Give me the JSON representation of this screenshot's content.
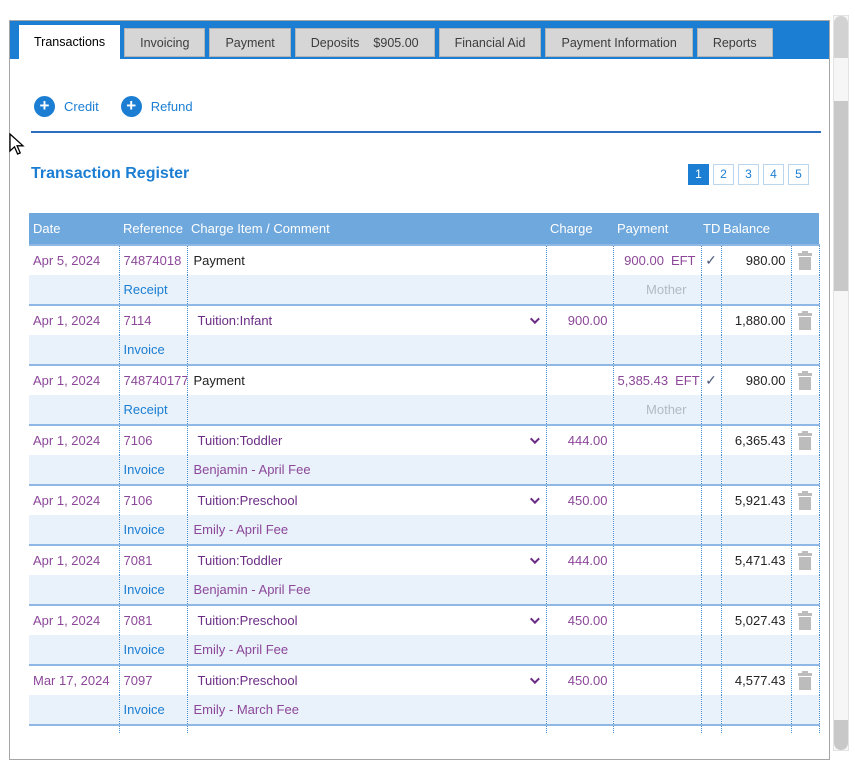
{
  "tabs": [
    {
      "label": "Transactions",
      "active": true
    },
    {
      "label": "Invoicing"
    },
    {
      "label": "Payment"
    },
    {
      "label": "Deposits",
      "amount": "$905.00"
    },
    {
      "label": "Financial Aid"
    },
    {
      "label": "Payment Information"
    },
    {
      "label": "Reports"
    }
  ],
  "actions": {
    "credit_label": "Credit",
    "refund_label": "Refund"
  },
  "register": {
    "title": "Transaction Register",
    "pagination": {
      "pages": [
        "1",
        "2",
        "3",
        "4",
        "5"
      ],
      "current": "1"
    },
    "table": {
      "headers": {
        "date": "Date",
        "reference": "Reference",
        "charge_item": "Charge Item / Comment",
        "charge": "Charge",
        "payment": "Payment",
        "td": "TD",
        "balance": "Balance"
      },
      "check_glyph": "✓",
      "rows": [
        {
          "date": "Apr 5, 2024",
          "reference": "74874018",
          "item": "Payment",
          "item_type": "text",
          "charge": "",
          "payment": {
            "amount": "900.00",
            "method": "EFT"
          },
          "td_check": true,
          "balance": "980.00",
          "link": "Receipt",
          "comment": "",
          "payer": "Mother"
        },
        {
          "date": "Apr 1, 2024",
          "reference": "7114",
          "item": "Tuition:Infant",
          "item_type": "select",
          "charge": "900.00",
          "payment": {
            "amount": "",
            "method": ""
          },
          "td_check": false,
          "balance": "1,880.00",
          "link": "Invoice",
          "comment": "",
          "payer": ""
        },
        {
          "date": "Apr 1, 2024",
          "reference": "748740177",
          "item": "Payment",
          "item_type": "text",
          "charge": "",
          "payment": {
            "amount": "5,385.43",
            "method": "EFT"
          },
          "td_check": true,
          "balance": "980.00",
          "link": "Receipt",
          "comment": "",
          "payer": "Mother"
        },
        {
          "date": "Apr 1, 2024",
          "reference": "7106",
          "item": "Tuition:Toddler",
          "item_type": "select",
          "charge": "444.00",
          "payment": {
            "amount": "",
            "method": ""
          },
          "td_check": false,
          "balance": "6,365.43",
          "link": "Invoice",
          "comment": "Benjamin - April Fee",
          "payer": ""
        },
        {
          "date": "Apr 1, 2024",
          "reference": "7106",
          "item": "Tuition:Preschool",
          "item_type": "select",
          "charge": "450.00",
          "payment": {
            "amount": "",
            "method": ""
          },
          "td_check": false,
          "balance": "5,921.43",
          "link": "Invoice",
          "comment": "Emily - April Fee",
          "payer": ""
        },
        {
          "date": "Apr 1, 2024",
          "reference": "7081",
          "item": "Tuition:Toddler",
          "item_type": "select",
          "charge": "444.00",
          "payment": {
            "amount": "",
            "method": ""
          },
          "td_check": false,
          "balance": "5,471.43",
          "link": "Invoice",
          "comment": "Benjamin - April Fee",
          "payer": ""
        },
        {
          "date": "Apr 1, 2024",
          "reference": "7081",
          "item": "Tuition:Preschool",
          "item_type": "select",
          "charge": "450.00",
          "payment": {
            "amount": "",
            "method": ""
          },
          "td_check": false,
          "balance": "5,027.43",
          "link": "Invoice",
          "comment": "Emily - April Fee",
          "payer": ""
        },
        {
          "date": "Mar 17, 2024",
          "reference": "7097",
          "item": "Tuition:Preschool",
          "item_type": "select",
          "charge": "450.00",
          "payment": {
            "amount": "",
            "method": ""
          },
          "td_check": false,
          "balance": "4,577.43",
          "link": "Invoice",
          "comment": "Emily - March Fee",
          "payer": ""
        }
      ]
    }
  },
  "colors": {
    "accent": "#1b7ed3",
    "header_blue": "#6fa8dc",
    "subrow_bg": "#e9f1fa",
    "purple": "#8c4799",
    "purple_dark": "#6b2d85",
    "check": "#515c7c",
    "rule": "#2b6fc0"
  }
}
